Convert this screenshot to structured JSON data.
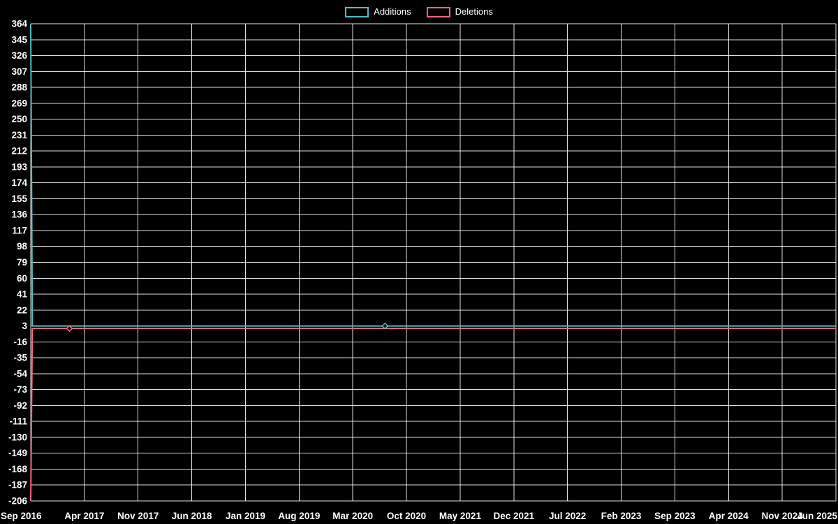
{
  "chart_data": {
    "type": "line",
    "title": "",
    "xlabel": "",
    "ylabel": "",
    "legend_position": "top",
    "background_color": "#000000",
    "grid": true,
    "grid_color": "rgba(255,255,255,0.88)",
    "axis_text_color": "#ffffff",
    "x_tick_labels": [
      "Sep 2016",
      "Apr 2017",
      "Nov 2017",
      "Jun 2018",
      "Jan 2019",
      "Aug 2019",
      "Mar 2020",
      "Oct 2020",
      "May 2021",
      "Dec 2021",
      "Jul 2022",
      "Feb 2023",
      "Sep 2023",
      "Apr 2024",
      "Nov 2024",
      "Jun 2025"
    ],
    "y_tick_labels": [
      364,
      345,
      326,
      307,
      288,
      269,
      250,
      231,
      212,
      193,
      174,
      155,
      136,
      117,
      98,
      79,
      60,
      41,
      22,
      3,
      -16,
      -35,
      -54,
      -73,
      -92,
      -111,
      -130,
      -149,
      -168,
      -187,
      -206
    ],
    "ylim": [
      -206,
      364
    ],
    "x_units": "tick_index (0 = Sep 2016, 15 = Jun 2025)",
    "series": [
      {
        "name": "Additions",
        "color": "#4bc0c0",
        "points": [
          [
            0,
            364
          ],
          [
            0.03,
            3
          ],
          [
            15,
            3
          ]
        ],
        "marker_points": [
          [
            6.6,
            3
          ]
        ]
      },
      {
        "name": "Deletions",
        "color": "#ff6384",
        "points": [
          [
            0,
            -206
          ],
          [
            0.03,
            0
          ],
          [
            15,
            0
          ]
        ],
        "marker_points": [
          [
            0.72,
            0
          ]
        ]
      }
    ]
  }
}
